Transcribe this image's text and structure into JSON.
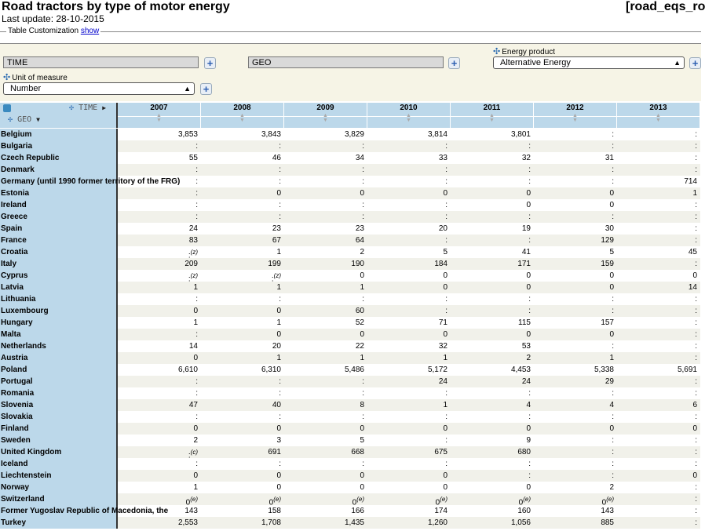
{
  "header": {
    "title": "Road tractors by type of motor energy",
    "dataset_code": "[road_eqs_ro",
    "last_update": "Last update: 28-10-2015"
  },
  "customization": {
    "label": "Table Customization",
    "link": "show"
  },
  "filters": {
    "time_box": "TIME",
    "geo_box": "GEO",
    "energy_label": "Energy product",
    "energy_value": "Alternative Energy",
    "unit_label": "Unit of measure",
    "unit_value": "Number",
    "plus": "+"
  },
  "table": {
    "corner_time": "TIME",
    "corner_geo": "GEO",
    "years": [
      "2007",
      "2008",
      "2009",
      "2010",
      "2011",
      "2012",
      "2013"
    ],
    "rows": [
      {
        "geo": "Belgium",
        "cells": [
          {
            "v": "3,853"
          },
          {
            "v": "3,843"
          },
          {
            "v": "3,829"
          },
          {
            "v": "3,814"
          },
          {
            "v": "3,801"
          },
          {
            "v": ":"
          },
          {
            "v": ":"
          }
        ]
      },
      {
        "geo": "Bulgaria",
        "cells": [
          {
            "v": ":"
          },
          {
            "v": ":"
          },
          {
            "v": ":"
          },
          {
            "v": ":"
          },
          {
            "v": ":"
          },
          {
            "v": ":"
          },
          {
            "v": ":"
          }
        ]
      },
      {
        "geo": "Czech Republic",
        "cells": [
          {
            "v": "55"
          },
          {
            "v": "46"
          },
          {
            "v": "34"
          },
          {
            "v": "33"
          },
          {
            "v": "32"
          },
          {
            "v": "31"
          },
          {
            "v": ":"
          }
        ]
      },
      {
        "geo": "Denmark",
        "cells": [
          {
            "v": ":"
          },
          {
            "v": ":"
          },
          {
            "v": ":"
          },
          {
            "v": ":"
          },
          {
            "v": ":"
          },
          {
            "v": ":"
          },
          {
            "v": ":"
          }
        ]
      },
      {
        "geo": "Germany (until 1990 former territory of the FRG)",
        "cells": [
          {
            "v": ":"
          },
          {
            "v": ":"
          },
          {
            "v": ":"
          },
          {
            "v": ":"
          },
          {
            "v": ":"
          },
          {
            "v": ":"
          },
          {
            "v": "714"
          }
        ]
      },
      {
        "geo": "Estonia",
        "cells": [
          {
            "v": ":"
          },
          {
            "v": "0"
          },
          {
            "v": "0"
          },
          {
            "v": "0"
          },
          {
            "v": "0"
          },
          {
            "v": "0"
          },
          {
            "v": "1"
          }
        ]
      },
      {
        "geo": "Ireland",
        "cells": [
          {
            "v": ":"
          },
          {
            "v": ":"
          },
          {
            "v": ":"
          },
          {
            "v": ":"
          },
          {
            "v": "0"
          },
          {
            "v": "0"
          },
          {
            "v": ":"
          }
        ]
      },
      {
        "geo": "Greece",
        "cells": [
          {
            "v": ":"
          },
          {
            "v": ":"
          },
          {
            "v": ":"
          },
          {
            "v": ":"
          },
          {
            "v": ":"
          },
          {
            "v": ":"
          },
          {
            "v": ":"
          }
        ]
      },
      {
        "geo": "Spain",
        "cells": [
          {
            "v": "24"
          },
          {
            "v": "23"
          },
          {
            "v": "23"
          },
          {
            "v": "20"
          },
          {
            "v": "19"
          },
          {
            "v": "30"
          },
          {
            "v": ":"
          }
        ]
      },
      {
        "geo": "France",
        "cells": [
          {
            "v": "83"
          },
          {
            "v": "67"
          },
          {
            "v": "64"
          },
          {
            "v": ":"
          },
          {
            "v": ":"
          },
          {
            "v": "129"
          },
          {
            "v": ":"
          }
        ]
      },
      {
        "geo": "Croatia",
        "cells": [
          {
            "v": ":",
            "f": "(z)"
          },
          {
            "v": "1"
          },
          {
            "v": "2"
          },
          {
            "v": "5"
          },
          {
            "v": "41"
          },
          {
            "v": "5"
          },
          {
            "v": "45"
          }
        ]
      },
      {
        "geo": "Italy",
        "cells": [
          {
            "v": "209"
          },
          {
            "v": "199"
          },
          {
            "v": "190"
          },
          {
            "v": "184"
          },
          {
            "v": "171"
          },
          {
            "v": "159"
          },
          {
            "v": ":"
          }
        ]
      },
      {
        "geo": "Cyprus",
        "cells": [
          {
            "v": ":",
            "f": "(z)"
          },
          {
            "v": ":",
            "f": "(z)"
          },
          {
            "v": "0"
          },
          {
            "v": "0"
          },
          {
            "v": "0"
          },
          {
            "v": "0"
          },
          {
            "v": "0"
          }
        ]
      },
      {
        "geo": "Latvia",
        "cells": [
          {
            "v": "1"
          },
          {
            "v": "1"
          },
          {
            "v": "1"
          },
          {
            "v": "0"
          },
          {
            "v": "0"
          },
          {
            "v": "0"
          },
          {
            "v": "14"
          }
        ]
      },
      {
        "geo": "Lithuania",
        "cells": [
          {
            "v": ":"
          },
          {
            "v": ":"
          },
          {
            "v": ":"
          },
          {
            "v": ":"
          },
          {
            "v": ":"
          },
          {
            "v": ":"
          },
          {
            "v": ":"
          }
        ]
      },
      {
        "geo": "Luxembourg",
        "cells": [
          {
            "v": "0"
          },
          {
            "v": "0"
          },
          {
            "v": "60"
          },
          {
            "v": ":"
          },
          {
            "v": ":"
          },
          {
            "v": ":"
          },
          {
            "v": ":"
          }
        ]
      },
      {
        "geo": "Hungary",
        "cells": [
          {
            "v": "1"
          },
          {
            "v": "1"
          },
          {
            "v": "52"
          },
          {
            "v": "71"
          },
          {
            "v": "115"
          },
          {
            "v": "157"
          },
          {
            "v": ":"
          }
        ]
      },
      {
        "geo": "Malta",
        "cells": [
          {
            "v": ":"
          },
          {
            "v": "0"
          },
          {
            "v": "0"
          },
          {
            "v": "0"
          },
          {
            "v": "0"
          },
          {
            "v": "0"
          },
          {
            "v": ":"
          }
        ]
      },
      {
        "geo": "Netherlands",
        "cells": [
          {
            "v": "14"
          },
          {
            "v": "20"
          },
          {
            "v": "22"
          },
          {
            "v": "32"
          },
          {
            "v": "53"
          },
          {
            "v": ":"
          },
          {
            "v": ":"
          }
        ]
      },
      {
        "geo": "Austria",
        "cells": [
          {
            "v": "0"
          },
          {
            "v": "1"
          },
          {
            "v": "1"
          },
          {
            "v": "1"
          },
          {
            "v": "2"
          },
          {
            "v": "1"
          },
          {
            "v": ":"
          }
        ]
      },
      {
        "geo": "Poland",
        "cells": [
          {
            "v": "6,610"
          },
          {
            "v": "6,310"
          },
          {
            "v": "5,486"
          },
          {
            "v": "5,172"
          },
          {
            "v": "4,453"
          },
          {
            "v": "5,338"
          },
          {
            "v": "5,691"
          }
        ]
      },
      {
        "geo": "Portugal",
        "cells": [
          {
            "v": ":"
          },
          {
            "v": ":"
          },
          {
            "v": ":"
          },
          {
            "v": "24"
          },
          {
            "v": "24"
          },
          {
            "v": "29"
          },
          {
            "v": ":"
          }
        ]
      },
      {
        "geo": "Romania",
        "cells": [
          {
            "v": ":"
          },
          {
            "v": ":"
          },
          {
            "v": ":"
          },
          {
            "v": ":"
          },
          {
            "v": ":"
          },
          {
            "v": ":"
          },
          {
            "v": ":"
          }
        ]
      },
      {
        "geo": "Slovenia",
        "cells": [
          {
            "v": "47"
          },
          {
            "v": "40"
          },
          {
            "v": "8"
          },
          {
            "v": "1"
          },
          {
            "v": "4"
          },
          {
            "v": "4"
          },
          {
            "v": "6"
          }
        ]
      },
      {
        "geo": "Slovakia",
        "cells": [
          {
            "v": ":"
          },
          {
            "v": ":"
          },
          {
            "v": ":"
          },
          {
            "v": ":"
          },
          {
            "v": ":"
          },
          {
            "v": ":"
          },
          {
            "v": ":"
          }
        ]
      },
      {
        "geo": "Finland",
        "cells": [
          {
            "v": "0"
          },
          {
            "v": "0"
          },
          {
            "v": "0"
          },
          {
            "v": "0"
          },
          {
            "v": "0"
          },
          {
            "v": "0"
          },
          {
            "v": "0"
          }
        ]
      },
      {
        "geo": "Sweden",
        "cells": [
          {
            "v": "2"
          },
          {
            "v": "3"
          },
          {
            "v": "5"
          },
          {
            "v": ":"
          },
          {
            "v": "9"
          },
          {
            "v": ":"
          },
          {
            "v": ":"
          }
        ]
      },
      {
        "geo": "United Kingdom",
        "cells": [
          {
            "v": ":",
            "f": "(c)"
          },
          {
            "v": "691"
          },
          {
            "v": "668"
          },
          {
            "v": "675"
          },
          {
            "v": "680"
          },
          {
            "v": ":"
          },
          {
            "v": ":"
          }
        ]
      },
      {
        "geo": "Iceland",
        "cells": [
          {
            "v": ":"
          },
          {
            "v": ":"
          },
          {
            "v": ":"
          },
          {
            "v": ":"
          },
          {
            "v": ":"
          },
          {
            "v": ":"
          },
          {
            "v": ":"
          }
        ]
      },
      {
        "geo": "Liechtenstein",
        "cells": [
          {
            "v": "0"
          },
          {
            "v": "0"
          },
          {
            "v": "0"
          },
          {
            "v": "0"
          },
          {
            "v": ":"
          },
          {
            "v": ":"
          },
          {
            "v": "0"
          }
        ]
      },
      {
        "geo": "Norway",
        "cells": [
          {
            "v": "1"
          },
          {
            "v": "0"
          },
          {
            "v": "0"
          },
          {
            "v": "0"
          },
          {
            "v": "0"
          },
          {
            "v": "2"
          },
          {
            "v": ":"
          }
        ]
      },
      {
        "geo": "Switzerland",
        "cells": [
          {
            "v": "0",
            "f": "(e)"
          },
          {
            "v": "0",
            "f": "(e)"
          },
          {
            "v": "0",
            "f": "(e)"
          },
          {
            "v": "0",
            "f": "(e)"
          },
          {
            "v": "0",
            "f": "(e)"
          },
          {
            "v": "0",
            "f": "(e)"
          },
          {
            "v": ":"
          }
        ]
      },
      {
        "geo": "Former Yugoslav Republic of Macedonia, the",
        "cells": [
          {
            "v": "143"
          },
          {
            "v": "158"
          },
          {
            "v": "166"
          },
          {
            "v": "174"
          },
          {
            "v": "160"
          },
          {
            "v": "143"
          },
          {
            "v": ":"
          }
        ]
      },
      {
        "geo": "Turkey",
        "cells": [
          {
            "v": "2,553"
          },
          {
            "v": "1,708"
          },
          {
            "v": "1,435"
          },
          {
            "v": "1,260"
          },
          {
            "v": "1,056"
          },
          {
            "v": "885"
          },
          {
            "v": ":"
          }
        ]
      }
    ]
  }
}
